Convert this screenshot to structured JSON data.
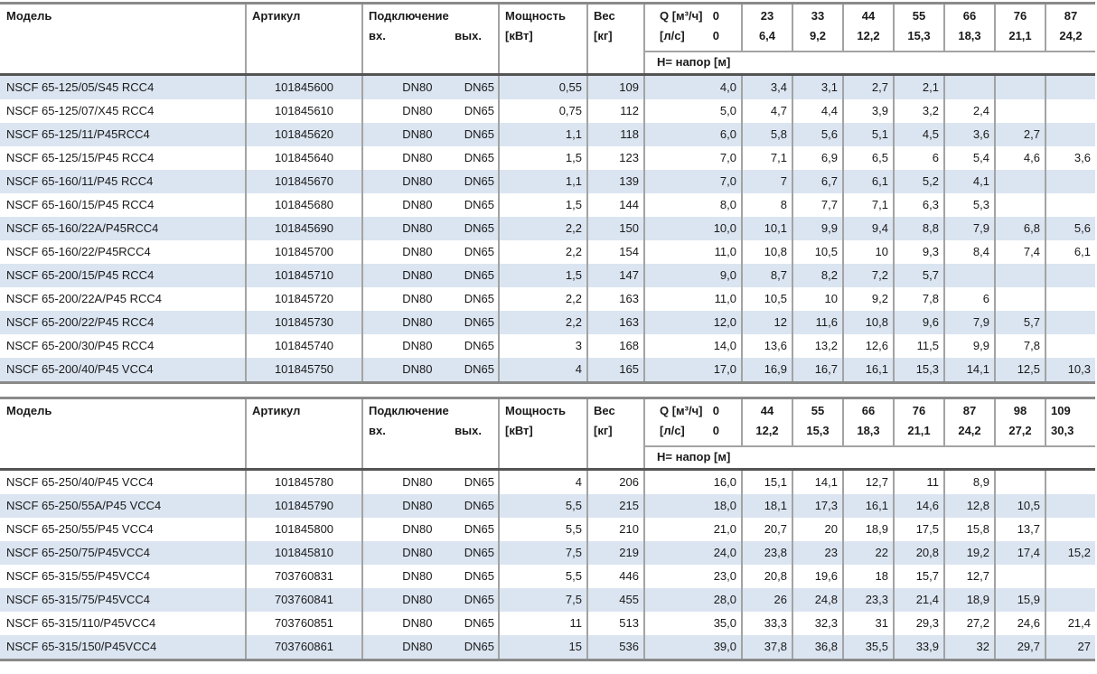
{
  "colors": {
    "row_shaded": "#dbe5f1",
    "grid": "#a3a3a3",
    "table_edge": "#8a8a8a",
    "header_separator": "#545454",
    "text": "#1a1a1a"
  },
  "header_labels": {
    "model": "Модель",
    "article": "Артикул",
    "connection": "Подключение",
    "inlet": "вх.",
    "outlet": "вых.",
    "power": "Мощность",
    "power_unit": "[кВт]",
    "weight": "Вес",
    "weight_unit": "[кг]",
    "q_m3h": "Q [м³/ч]",
    "q_ls": "[л/с]",
    "q_zero": "0",
    "head_label": "Н= напор [м]"
  },
  "tables": [
    {
      "name": "pump-table-nscf-65-125-200",
      "first_row_shaded": true,
      "last_q_left": false,
      "q_columns": [
        {
          "m3h": "23",
          "ls": "6,4"
        },
        {
          "m3h": "33",
          "ls": "9,2"
        },
        {
          "m3h": "44",
          "ls": "12,2"
        },
        {
          "m3h": "55",
          "ls": "15,3"
        },
        {
          "m3h": "66",
          "ls": "18,3"
        },
        {
          "m3h": "76",
          "ls": "21,1"
        },
        {
          "m3h": "87",
          "ls": "24,2"
        }
      ],
      "rows": [
        {
          "model": "NSCF 65-125/05/S45 RCC4",
          "article": "101845600",
          "inlet": "DN80",
          "outlet": "DN65",
          "power": "0,55",
          "weight": "109",
          "h": [
            "4,0",
            "3,4",
            "3,1",
            "2,7",
            "2,1",
            "",
            "",
            ""
          ]
        },
        {
          "model": "NSCF 65-125/07/X45 RCC4",
          "article": "101845610",
          "inlet": "DN80",
          "outlet": "DN65",
          "power": "0,75",
          "weight": "112",
          "h": [
            "5,0",
            "4,7",
            "4,4",
            "3,9",
            "3,2",
            "2,4",
            "",
            ""
          ]
        },
        {
          "model": "NSCF 65-125/11/P45RCC4",
          "article": "101845620",
          "inlet": "DN80",
          "outlet": "DN65",
          "power": "1,1",
          "weight": "118",
          "h": [
            "6,0",
            "5,8",
            "5,6",
            "5,1",
            "4,5",
            "3,6",
            "2,7",
            ""
          ]
        },
        {
          "model": "NSCF 65-125/15/P45 RCC4",
          "article": "101845640",
          "inlet": "DN80",
          "outlet": "DN65",
          "power": "1,5",
          "weight": "123",
          "h": [
            "7,0",
            "7,1",
            "6,9",
            "6,5",
            "6",
            "5,4",
            "4,6",
            "3,6"
          ]
        },
        {
          "model": "NSCF 65-160/11/P45 RCC4",
          "article": "101845670",
          "inlet": "DN80",
          "outlet": "DN65",
          "power": "1,1",
          "weight": "139",
          "h": [
            "7,0",
            "7",
            "6,7",
            "6,1",
            "5,2",
            "4,1",
            "",
            ""
          ]
        },
        {
          "model": "NSCF 65-160/15/P45 RCC4",
          "article": "101845680",
          "inlet": "DN80",
          "outlet": "DN65",
          "power": "1,5",
          "weight": "144",
          "h": [
            "8,0",
            "8",
            "7,7",
            "7,1",
            "6,3",
            "5,3",
            "",
            ""
          ]
        },
        {
          "model": "NSCF 65-160/22A/P45RCC4",
          "article": "101845690",
          "inlet": "DN80",
          "outlet": "DN65",
          "power": "2,2",
          "weight": "150",
          "h": [
            "10,0",
            "10,1",
            "9,9",
            "9,4",
            "8,8",
            "7,9",
            "6,8",
            "5,6"
          ]
        },
        {
          "model": "NSCF 65-160/22/P45RCC4",
          "article": "101845700",
          "inlet": "DN80",
          "outlet": "DN65",
          "power": "2,2",
          "weight": "154",
          "h": [
            "11,0",
            "10,8",
            "10,5",
            "10",
            "9,3",
            "8,4",
            "7,4",
            "6,1"
          ]
        },
        {
          "model": "NSCF 65-200/15/P45 RCC4",
          "article": "101845710",
          "inlet": "DN80",
          "outlet": "DN65",
          "power": "1,5",
          "weight": "147",
          "h": [
            "9,0",
            "8,7",
            "8,2",
            "7,2",
            "5,7",
            "",
            "",
            ""
          ]
        },
        {
          "model": "NSCF 65-200/22A/P45 RCC4",
          "article": "101845720",
          "inlet": "DN80",
          "outlet": "DN65",
          "power": "2,2",
          "weight": "163",
          "h": [
            "11,0",
            "10,5",
            "10",
            "9,2",
            "7,8",
            "6",
            "",
            ""
          ]
        },
        {
          "model": "NSCF 65-200/22/P45 RCC4",
          "article": "101845730",
          "inlet": "DN80",
          "outlet": "DN65",
          "power": "2,2",
          "weight": "163",
          "h": [
            "12,0",
            "12",
            "11,6",
            "10,8",
            "9,6",
            "7,9",
            "5,7",
            ""
          ]
        },
        {
          "model": "NSCF 65-200/30/P45 RCC4",
          "article": "101845740",
          "inlet": "DN80",
          "outlet": "DN65",
          "power": "3",
          "weight": "168",
          "h": [
            "14,0",
            "13,6",
            "13,2",
            "12,6",
            "11,5",
            "9,9",
            "7,8",
            ""
          ]
        },
        {
          "model": "NSCF 65-200/40/P45 VCC4",
          "article": "101845750",
          "inlet": "DN80",
          "outlet": "DN65",
          "power": "4",
          "weight": "165",
          "h": [
            "17,0",
            "16,9",
            "16,7",
            "16,1",
            "15,3",
            "14,1",
            "12,5",
            "10,3"
          ]
        }
      ]
    },
    {
      "name": "pump-table-nscf-65-250-315",
      "first_row_shaded": false,
      "last_q_left": true,
      "q_columns": [
        {
          "m3h": "44",
          "ls": "12,2"
        },
        {
          "m3h": "55",
          "ls": "15,3"
        },
        {
          "m3h": "66",
          "ls": "18,3"
        },
        {
          "m3h": "76",
          "ls": "21,1"
        },
        {
          "m3h": "87",
          "ls": "24,2"
        },
        {
          "m3h": "98",
          "ls": "27,2"
        },
        {
          "m3h": "109",
          "ls": "30,3"
        }
      ],
      "rows": [
        {
          "model": "NSCF 65-250/40/P45 VCC4",
          "article": "101845780",
          "inlet": "DN80",
          "outlet": "DN65",
          "power": "4",
          "weight": "206",
          "h": [
            "16,0",
            "15,1",
            "14,1",
            "12,7",
            "11",
            "8,9",
            "",
            ""
          ]
        },
        {
          "model": "NSCF 65-250/55A/P45 VCC4",
          "article": "101845790",
          "inlet": "DN80",
          "outlet": "DN65",
          "power": "5,5",
          "weight": "215",
          "h": [
            "18,0",
            "18,1",
            "17,3",
            "16,1",
            "14,6",
            "12,8",
            "10,5",
            ""
          ]
        },
        {
          "model": "NSCF 65-250/55/P45 VCC4",
          "article": "101845800",
          "inlet": "DN80",
          "outlet": "DN65",
          "power": "5,5",
          "weight": "210",
          "h": [
            "21,0",
            "20,7",
            "20",
            "18,9",
            "17,5",
            "15,8",
            "13,7",
            ""
          ]
        },
        {
          "model": "NSCF 65-250/75/P45VCC4",
          "article": "101845810",
          "inlet": "DN80",
          "outlet": "DN65",
          "power": "7,5",
          "weight": "219",
          "h": [
            "24,0",
            "23,8",
            "23",
            "22",
            "20,8",
            "19,2",
            "17,4",
            "15,2"
          ]
        },
        {
          "model": "NSCF 65-315/55/P45VCC4",
          "article": "703760831",
          "inlet": "DN80",
          "outlet": "DN65",
          "power": "5,5",
          "weight": "446",
          "h": [
            "23,0",
            "20,8",
            "19,6",
            "18",
            "15,7",
            "12,7",
            "",
            ""
          ]
        },
        {
          "model": "NSCF 65-315/75/P45VCC4",
          "article": "703760841",
          "inlet": "DN80",
          "outlet": "DN65",
          "power": "7,5",
          "weight": "455",
          "h": [
            "28,0",
            "26",
            "24,8",
            "23,3",
            "21,4",
            "18,9",
            "15,9",
            ""
          ]
        },
        {
          "model": "NSCF 65-315/110/P45VCC4",
          "article": "703760851",
          "inlet": "DN80",
          "outlet": "DN65",
          "power": "11",
          "weight": "513",
          "h": [
            "35,0",
            "33,3",
            "32,3",
            "31",
            "29,3",
            "27,2",
            "24,6",
            "21,4"
          ]
        },
        {
          "model": "NSCF 65-315/150/P45VCC4",
          "article": "703760861",
          "inlet": "DN80",
          "outlet": "DN65",
          "power": "15",
          "weight": "536",
          "h": [
            "39,0",
            "37,8",
            "36,8",
            "35,5",
            "33,9",
            "32",
            "29,7",
            "27"
          ]
        }
      ]
    }
  ]
}
